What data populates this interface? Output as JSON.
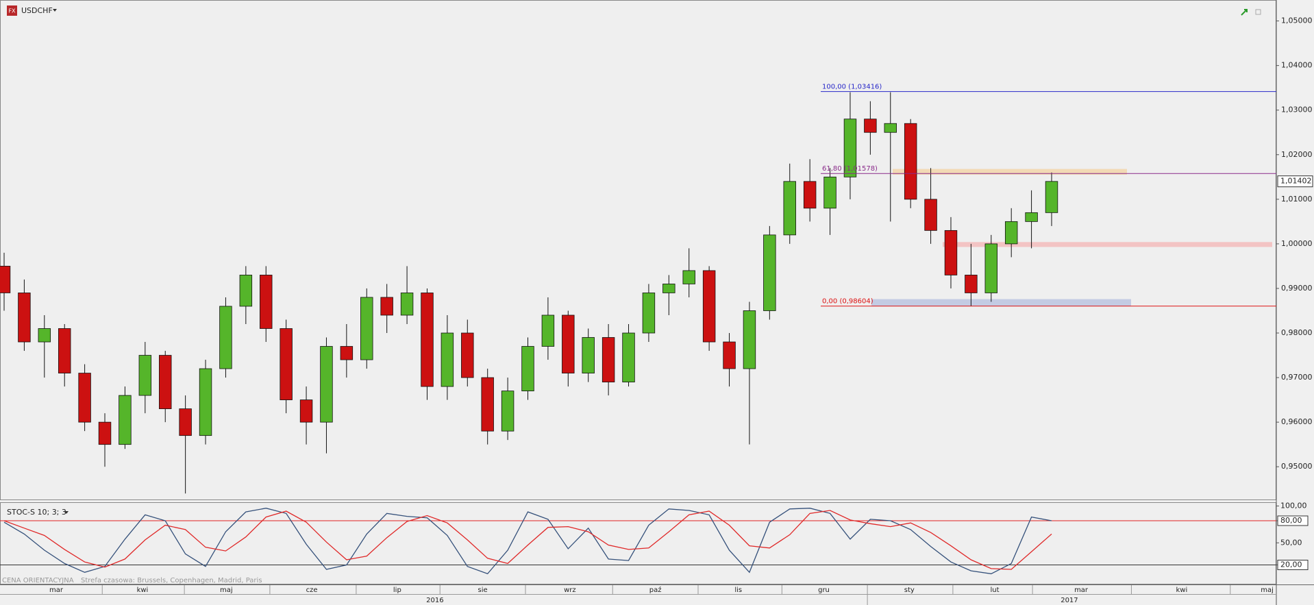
{
  "toolbar": {
    "symbol": "USDCHF"
  },
  "chart_data": [
    {
      "type": "candlestick",
      "open": [
        0.995,
        0.989,
        0.978,
        0.981,
        0.971,
        0.96,
        0.955,
        0.966,
        0.975,
        0.963,
        0.957,
        0.972,
        0.986,
        0.993,
        0.981,
        0.965,
        0.96,
        0.977,
        0.974,
        0.988,
        0.984,
        0.989,
        0.968,
        0.98,
        0.97,
        0.958,
        0.967,
        0.977,
        0.984,
        0.971,
        0.979,
        0.969,
        0.98,
        0.989,
        0.991,
        0.994,
        0.978,
        0.972,
        0.985,
        1.002,
        1.014,
        1.008,
        1.015,
        1.028,
        1.025,
        1.027,
        1.01,
        1.003,
        0.993,
        0.989,
        1.0,
        1.005,
        1.007
      ],
      "high": [
        0.998,
        0.992,
        0.984,
        0.982,
        0.973,
        0.962,
        0.968,
        0.978,
        0.976,
        0.966,
        0.974,
        0.988,
        0.995,
        0.995,
        0.983,
        0.968,
        0.979,
        0.982,
        0.99,
        0.991,
        0.995,
        0.99,
        0.984,
        0.983,
        0.972,
        0.97,
        0.979,
        0.988,
        0.985,
        0.981,
        0.982,
        0.982,
        0.991,
        0.993,
        0.999,
        0.995,
        0.98,
        0.987,
        1.004,
        1.018,
        1.019,
        1.017,
        1.034,
        1.032,
        1.034,
        1.028,
        1.017,
        1.006,
        1.0,
        1.002,
        1.008,
        1.012,
        1.016
      ],
      "low": [
        0.985,
        0.976,
        0.97,
        0.968,
        0.958,
        0.95,
        0.954,
        0.962,
        0.96,
        0.944,
        0.955,
        0.97,
        0.982,
        0.978,
        0.962,
        0.955,
        0.953,
        0.97,
        0.972,
        0.98,
        0.982,
        0.965,
        0.965,
        0.968,
        0.955,
        0.956,
        0.965,
        0.974,
        0.968,
        0.969,
        0.966,
        0.968,
        0.978,
        0.984,
        0.988,
        0.976,
        0.968,
        0.955,
        0.983,
        1.0,
        1.005,
        1.002,
        1.01,
        1.02,
        1.005,
        1.008,
        1.0,
        0.99,
        0.986,
        0.987,
        0.997,
        0.999,
        1.004
      ],
      "close": [
        0.989,
        0.978,
        0.981,
        0.971,
        0.96,
        0.955,
        0.966,
        0.975,
        0.963,
        0.957,
        0.972,
        0.986,
        0.993,
        0.981,
        0.965,
        0.96,
        0.977,
        0.974,
        0.988,
        0.984,
        0.989,
        0.968,
        0.98,
        0.97,
        0.958,
        0.967,
        0.977,
        0.984,
        0.971,
        0.979,
        0.969,
        0.98,
        0.989,
        0.991,
        0.994,
        0.978,
        0.972,
        0.985,
        1.002,
        1.014,
        1.008,
        1.015,
        1.028,
        1.025,
        1.027,
        1.01,
        1.003,
        0.993,
        0.989,
        1.0,
        1.005,
        1.007,
        1.014
      ],
      "up_color": "#55b52a",
      "down_color": "#cc1111",
      "ylim": [
        0.9425,
        1.0547
      ],
      "yticks": [
        {
          "value": 0.95,
          "label": "0,95000"
        },
        {
          "value": 0.96,
          "label": "0,96000"
        },
        {
          "value": 0.97,
          "label": "0,97000"
        },
        {
          "value": 0.98,
          "label": "0,98000"
        },
        {
          "value": 0.99,
          "label": "0,99000"
        },
        {
          "value": 1.0,
          "label": "1,00000"
        },
        {
          "value": 1.01,
          "label": "1,01000"
        },
        {
          "value": 1.02,
          "label": "1,02000"
        },
        {
          "value": 1.03,
          "label": "1,03000"
        },
        {
          "value": 1.04,
          "label": "1,04000"
        },
        {
          "value": 1.05,
          "label": "1,05000"
        }
      ],
      "fib_levels": [
        {
          "label": "100,00 (1,03416)",
          "value": 1.03416,
          "color": "#2626c8"
        },
        {
          "label": "61,80 (1,01578)",
          "value": 1.01578,
          "color": "#8a2a8a"
        },
        {
          "label": "0,00 (0,98604)",
          "value": 0.98604,
          "color": "#dd1111"
        }
      ],
      "zones": [
        {
          "low": 1.0155,
          "high": 1.0168,
          "color": "#f3d3a6"
        },
        {
          "low": 0.9993,
          "high": 1.0004,
          "color": "#f4b9b9"
        },
        {
          "low": 0.986,
          "high": 0.9876,
          "color": "#b8c2e0"
        }
      ],
      "last_price": {
        "value": 1.01402,
        "label": "1,01402"
      }
    },
    {
      "type": "stochastic",
      "title": "STOC-S 10; 3; 3",
      "series": [
        {
          "color": "#34507a",
          "values": [
            78,
            62,
            40,
            22,
            10,
            18,
            55,
            88,
            80,
            35,
            18,
            65,
            92,
            97,
            90,
            48,
            14,
            20,
            62,
            90,
            86,
            84,
            60,
            18,
            8,
            40,
            92,
            82,
            42,
            70,
            28,
            26,
            74,
            96,
            94,
            88,
            40,
            10,
            78,
            96,
            97,
            90,
            55,
            82,
            80,
            68,
            45,
            24,
            12,
            8,
            22,
            85,
            80
          ]
        },
        {
          "color": "#e02828",
          "values": [
            80,
            70,
            60,
            41,
            24,
            17,
            28,
            54,
            74,
            68,
            44,
            39,
            58,
            85,
            93,
            78,
            51,
            27,
            32,
            57,
            79,
            87,
            77,
            54,
            29,
            22,
            47,
            71,
            72,
            65,
            47,
            41,
            43,
            65,
            88,
            93,
            74,
            46,
            43,
            61,
            90,
            94,
            81,
            76,
            72,
            77,
            64,
            46,
            27,
            15,
            14,
            38,
            62
          ]
        }
      ],
      "ylim": [
        -6.5,
        104.2
      ],
      "yticks": [
        {
          "value": 100,
          "label": "100,00"
        },
        {
          "value": 80,
          "label": "80,00"
        },
        {
          "value": 50,
          "label": "50,00"
        },
        {
          "value": 20,
          "label": "20,00"
        }
      ],
      "levels": [
        {
          "value": 80,
          "color": "#e02020"
        },
        {
          "value": 20,
          "color": "#333333"
        }
      ]
    }
  ],
  "footer": {
    "price_note": "CENA ORIENTACYJNA",
    "timezone": "Strefa czasowa: Brussels, Copenhagen, Madrid, Paris"
  },
  "time_axis": {
    "months": [
      "mar",
      "kwi",
      "maj",
      "cze",
      "lip",
      "sie",
      "wrz",
      "paź",
      "lis",
      "gru",
      "sty",
      "lut",
      "mar",
      "kwi",
      "maj"
    ],
    "years": [
      "2016",
      "2017"
    ]
  }
}
